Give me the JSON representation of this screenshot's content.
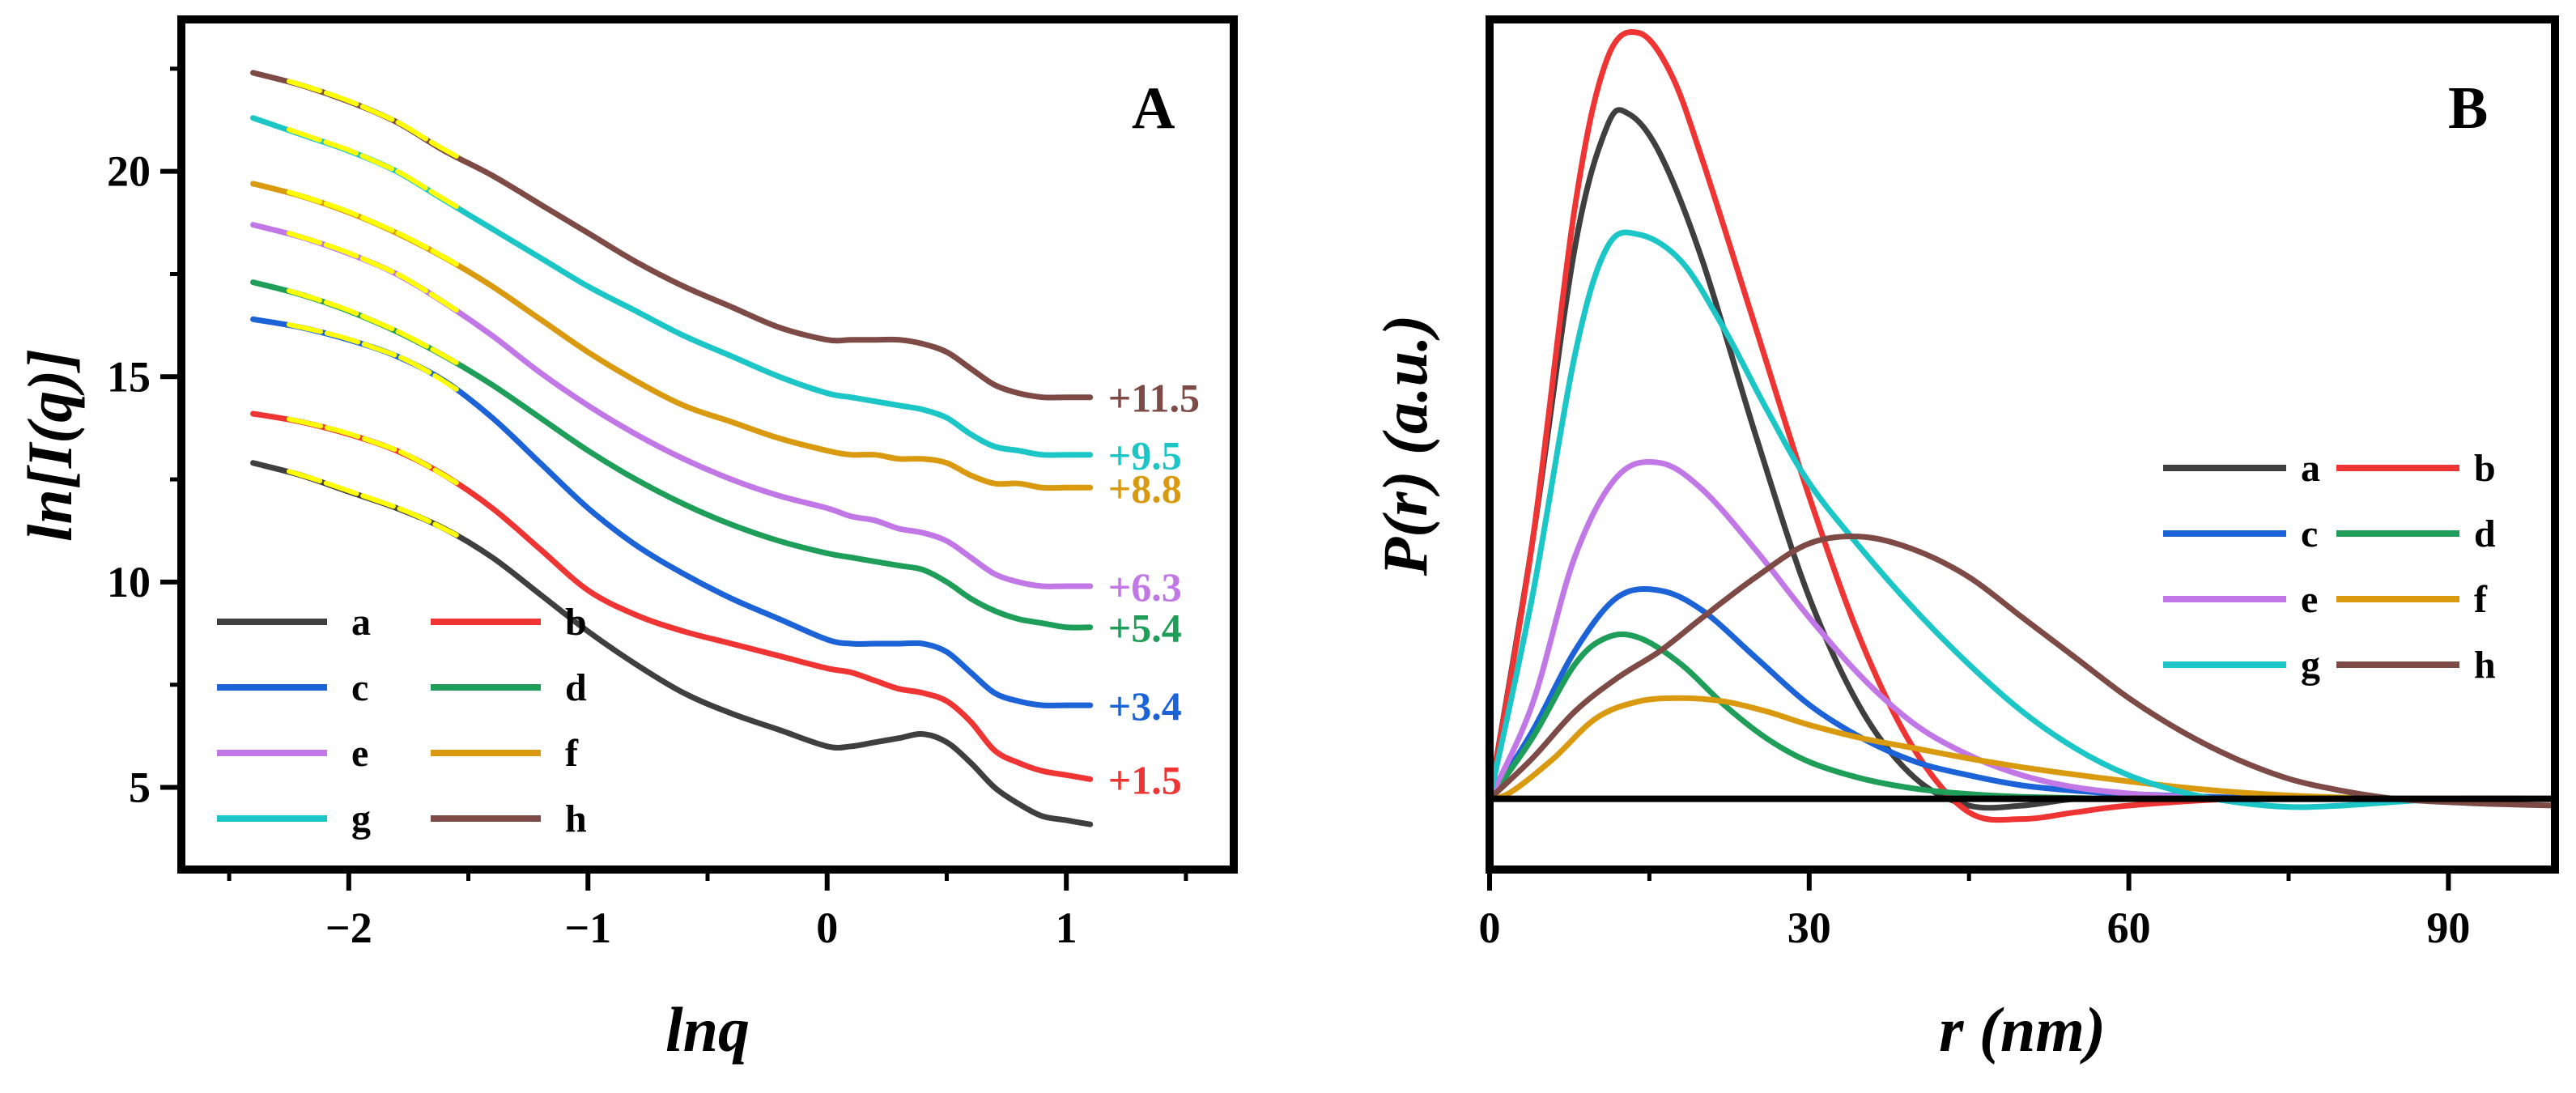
{
  "chart_data": [
    {
      "type": "line",
      "panel_label": "A",
      "xlabel": "lnq",
      "ylabel": "ln[I(q)]",
      "xlim": [
        -2.7,
        1.7
      ],
      "ylim": [
        3.0,
        23.7
      ],
      "xticks": [
        -2,
        -1,
        0,
        1
      ],
      "xtick_labels": [
        "−2",
        "−1",
        "0",
        "1"
      ],
      "yticks": [
        5,
        10,
        15,
        20
      ],
      "ytick_labels": [
        "5",
        "10",
        "15",
        "20"
      ],
      "legend": {
        "placement": "bottom-left",
        "columns": 2
      },
      "series": [
        {
          "name": "a",
          "color": "#3f3f3f",
          "offset_label": "",
          "x": [
            -2.4,
            -2.2,
            -2.0,
            -1.8,
            -1.6,
            -1.4,
            -1.2,
            -1.0,
            -0.8,
            -0.6,
            -0.4,
            -0.2,
            0.0,
            0.1,
            0.2,
            0.3,
            0.4,
            0.5,
            0.6,
            0.7,
            0.8,
            0.9,
            1.0,
            1.1
          ],
          "y": [
            12.9,
            12.6,
            12.2,
            11.8,
            11.3,
            10.6,
            9.7,
            8.8,
            8.0,
            7.3,
            6.8,
            6.4,
            6.0,
            6.0,
            6.1,
            6.2,
            6.3,
            6.1,
            5.6,
            5.0,
            4.6,
            4.3,
            4.2,
            4.1
          ]
        },
        {
          "name": "b",
          "color": "#ef3434",
          "offset_label": "+1.5",
          "x": [
            -2.4,
            -2.2,
            -2.0,
            -1.8,
            -1.6,
            -1.4,
            -1.2,
            -1.0,
            -0.8,
            -0.6,
            -0.4,
            -0.2,
            0.0,
            0.1,
            0.2,
            0.3,
            0.4,
            0.5,
            0.6,
            0.7,
            0.8,
            0.9,
            1.0,
            1.1
          ],
          "y": [
            14.1,
            13.9,
            13.6,
            13.2,
            12.6,
            11.8,
            10.8,
            9.8,
            9.2,
            8.8,
            8.5,
            8.2,
            7.9,
            7.8,
            7.6,
            7.4,
            7.3,
            7.1,
            6.6,
            5.9,
            5.6,
            5.4,
            5.3,
            5.2
          ]
        },
        {
          "name": "c",
          "color": "#1b63d6",
          "offset_label": "+3.4",
          "x": [
            -2.4,
            -2.2,
            -2.0,
            -1.8,
            -1.6,
            -1.4,
            -1.2,
            -1.0,
            -0.8,
            -0.6,
            -0.4,
            -0.2,
            0.0,
            0.1,
            0.2,
            0.3,
            0.4,
            0.5,
            0.6,
            0.7,
            0.8,
            0.9,
            1.0,
            1.1
          ],
          "y": [
            16.4,
            16.2,
            15.9,
            15.5,
            14.9,
            14.0,
            12.9,
            11.8,
            10.9,
            10.2,
            9.6,
            9.1,
            8.6,
            8.5,
            8.5,
            8.5,
            8.5,
            8.3,
            7.8,
            7.3,
            7.1,
            7.0,
            7.0,
            7.0
          ]
        },
        {
          "name": "d",
          "color": "#1f9e5a",
          "offset_label": "+5.4",
          "x": [
            -2.4,
            -2.2,
            -2.0,
            -1.8,
            -1.6,
            -1.4,
            -1.2,
            -1.0,
            -0.8,
            -0.6,
            -0.4,
            -0.2,
            0.0,
            0.1,
            0.2,
            0.3,
            0.4,
            0.5,
            0.6,
            0.7,
            0.8,
            0.9,
            1.0,
            1.1
          ],
          "y": [
            17.3,
            17.0,
            16.6,
            16.1,
            15.5,
            14.8,
            14.0,
            13.2,
            12.5,
            11.9,
            11.4,
            11.0,
            10.7,
            10.6,
            10.5,
            10.4,
            10.3,
            10.0,
            9.6,
            9.3,
            9.1,
            9.0,
            8.9,
            8.9
          ]
        },
        {
          "name": "e",
          "color": "#c178e6",
          "offset_label": "+6.3",
          "x": [
            -2.4,
            -2.2,
            -2.0,
            -1.8,
            -1.6,
            -1.4,
            -1.2,
            -1.0,
            -0.8,
            -0.6,
            -0.4,
            -0.2,
            0.0,
            0.1,
            0.2,
            0.3,
            0.4,
            0.5,
            0.6,
            0.7,
            0.8,
            0.9,
            1.0,
            1.1
          ],
          "y": [
            18.7,
            18.4,
            18.0,
            17.5,
            16.8,
            16.0,
            15.1,
            14.3,
            13.6,
            13.0,
            12.5,
            12.1,
            11.8,
            11.6,
            11.5,
            11.3,
            11.2,
            11.0,
            10.6,
            10.2,
            10.0,
            9.9,
            9.9,
            9.9
          ]
        },
        {
          "name": "f",
          "color": "#d99a10",
          "offset_label": "+8.8",
          "x": [
            -2.4,
            -2.2,
            -2.0,
            -1.8,
            -1.6,
            -1.4,
            -1.2,
            -1.0,
            -0.8,
            -0.6,
            -0.4,
            -0.2,
            0.0,
            0.1,
            0.2,
            0.3,
            0.4,
            0.5,
            0.6,
            0.7,
            0.8,
            0.9,
            1.0,
            1.1
          ],
          "y": [
            19.7,
            19.4,
            19.0,
            18.5,
            17.9,
            17.2,
            16.4,
            15.6,
            14.9,
            14.3,
            13.9,
            13.5,
            13.2,
            13.1,
            13.1,
            13.0,
            13.0,
            12.9,
            12.6,
            12.4,
            12.4,
            12.3,
            12.3,
            12.3
          ]
        },
        {
          "name": "g",
          "color": "#1cc6c6",
          "offset_label": "+9.5",
          "x": [
            -2.4,
            -2.2,
            -2.0,
            -1.8,
            -1.6,
            -1.4,
            -1.2,
            -1.0,
            -0.8,
            -0.6,
            -0.4,
            -0.2,
            0.0,
            0.1,
            0.2,
            0.3,
            0.4,
            0.5,
            0.6,
            0.7,
            0.8,
            0.9,
            1.0,
            1.1
          ],
          "y": [
            21.3,
            20.9,
            20.5,
            20.0,
            19.3,
            18.6,
            17.9,
            17.2,
            16.6,
            16.0,
            15.5,
            15.0,
            14.6,
            14.5,
            14.4,
            14.3,
            14.2,
            14.0,
            13.6,
            13.3,
            13.2,
            13.1,
            13.1,
            13.1
          ]
        },
        {
          "name": "h",
          "color": "#7e4a45",
          "offset_label": "+11.5",
          "x": [
            -2.4,
            -2.2,
            -2.0,
            -1.8,
            -1.6,
            -1.4,
            -1.2,
            -1.0,
            -0.8,
            -0.6,
            -0.4,
            -0.2,
            0.0,
            0.1,
            0.2,
            0.3,
            0.4,
            0.5,
            0.6,
            0.7,
            0.8,
            0.9,
            1.0,
            1.1
          ],
          "y": [
            22.4,
            22.1,
            21.7,
            21.2,
            20.5,
            19.9,
            19.2,
            18.5,
            17.8,
            17.2,
            16.7,
            16.2,
            15.9,
            15.9,
            15.9,
            15.9,
            15.8,
            15.6,
            15.2,
            14.8,
            14.6,
            14.5,
            14.5,
            14.5
          ]
        }
      ],
      "fit_lines": {
        "color": "#ffff00",
        "x_range": [
          -2.25,
          -1.55
        ],
        "description_series": [
          "a",
          "b",
          "c",
          "d",
          "e",
          "f",
          "g",
          "h"
        ]
      }
    },
    {
      "type": "line",
      "panel_label": "B",
      "xlabel": "r (nm)",
      "ylabel": "P(r) (a.u.)",
      "xlim": [
        0,
        100
      ],
      "ylim": [
        -0.045,
        1.16
      ],
      "xticks": [
        0,
        30,
        60,
        90
      ],
      "xtick_labels": [
        "0",
        "30",
        "60",
        "90"
      ],
      "yticks_shown": false,
      "zero_line": true,
      "legend": {
        "placement": "center-right",
        "columns": 2
      },
      "series": [
        {
          "name": "a",
          "color": "#3f3f3f",
          "x": [
            0,
            4,
            8,
            11,
            13,
            16,
            20,
            25,
            30,
            35,
            40,
            45,
            50,
            55,
            60,
            70,
            80,
            90,
            100
          ],
          "y": [
            0,
            0.38,
            0.82,
            1.0,
            1.02,
            0.96,
            0.8,
            0.54,
            0.3,
            0.13,
            0.03,
            -0.01,
            -0.01,
            0.0,
            0.0,
            0.0,
            0.0,
            0.0,
            0.0
          ]
        },
        {
          "name": "b",
          "color": "#ef3434",
          "x": [
            0,
            4,
            8,
            11,
            14,
            17,
            20,
            25,
            30,
            35,
            40,
            45,
            50,
            55,
            60,
            70,
            80,
            90,
            100
          ],
          "y": [
            0,
            0.38,
            0.88,
            1.1,
            1.14,
            1.08,
            0.95,
            0.7,
            0.45,
            0.23,
            0.07,
            -0.02,
            -0.03,
            -0.02,
            -0.01,
            0.0,
            0.0,
            0.0,
            0.0
          ]
        },
        {
          "name": "c",
          "color": "#1b63d6",
          "x": [
            0,
            4,
            8,
            12,
            16,
            20,
            25,
            30,
            35,
            40,
            45,
            50,
            55,
            60,
            70,
            80,
            90,
            100
          ],
          "y": [
            0,
            0.1,
            0.22,
            0.3,
            0.31,
            0.28,
            0.21,
            0.14,
            0.09,
            0.055,
            0.035,
            0.02,
            0.012,
            0.007,
            0.002,
            0.0,
            0.0,
            0.0
          ]
        },
        {
          "name": "d",
          "color": "#1f9e5a",
          "x": [
            0,
            4,
            8,
            11,
            14,
            18,
            22,
            26,
            30,
            35,
            40,
            45,
            50,
            60,
            70,
            80,
            90,
            100
          ],
          "y": [
            0,
            0.09,
            0.2,
            0.24,
            0.24,
            0.2,
            0.14,
            0.09,
            0.055,
            0.03,
            0.015,
            0.007,
            0.003,
            0.0,
            0.0,
            0.0,
            0.0,
            0.0
          ]
        },
        {
          "name": "e",
          "color": "#c178e6",
          "x": [
            0,
            4,
            8,
            12,
            16,
            20,
            25,
            30,
            35,
            40,
            45,
            50,
            55,
            60,
            65,
            70,
            80,
            90,
            100
          ],
          "y": [
            0,
            0.14,
            0.36,
            0.48,
            0.5,
            0.46,
            0.37,
            0.27,
            0.18,
            0.11,
            0.065,
            0.035,
            0.017,
            0.008,
            0.003,
            0.0,
            0.0,
            0.0,
            0.0
          ]
        },
        {
          "name": "f",
          "color": "#d99a10",
          "x": [
            0,
            2,
            6,
            10,
            14,
            18,
            22,
            26,
            30,
            35,
            40,
            45,
            50,
            55,
            60,
            65,
            70,
            75,
            80,
            85,
            90,
            100
          ],
          "y": [
            0,
            0.01,
            0.06,
            0.12,
            0.145,
            0.15,
            0.145,
            0.13,
            0.11,
            0.09,
            0.075,
            0.06,
            0.047,
            0.036,
            0.026,
            0.017,
            0.01,
            0.005,
            0.002,
            0.0,
            0.0,
            0.0
          ]
        },
        {
          "name": "g",
          "color": "#1cc6c6",
          "x": [
            0,
            4,
            8,
            11,
            14,
            18,
            22,
            26,
            30,
            35,
            40,
            45,
            50,
            55,
            60,
            65,
            70,
            75,
            80,
            90,
            100
          ],
          "y": [
            0,
            0.3,
            0.66,
            0.82,
            0.84,
            0.8,
            0.7,
            0.58,
            0.47,
            0.37,
            0.28,
            0.2,
            0.13,
            0.075,
            0.035,
            0.01,
            -0.005,
            -0.012,
            -0.01,
            0.0,
            0.0
          ]
        },
        {
          "name": "h",
          "color": "#7e4a45",
          "x": [
            0,
            4,
            8,
            12,
            16,
            20,
            25,
            30,
            35,
            40,
            45,
            50,
            55,
            60,
            65,
            70,
            75,
            80,
            85,
            90,
            95,
            100
          ],
          "y": [
            0,
            0.06,
            0.13,
            0.18,
            0.22,
            0.27,
            0.33,
            0.38,
            0.39,
            0.37,
            0.33,
            0.27,
            0.21,
            0.15,
            0.1,
            0.06,
            0.03,
            0.012,
            0.0,
            -0.005,
            -0.008,
            -0.01
          ]
        }
      ]
    }
  ]
}
